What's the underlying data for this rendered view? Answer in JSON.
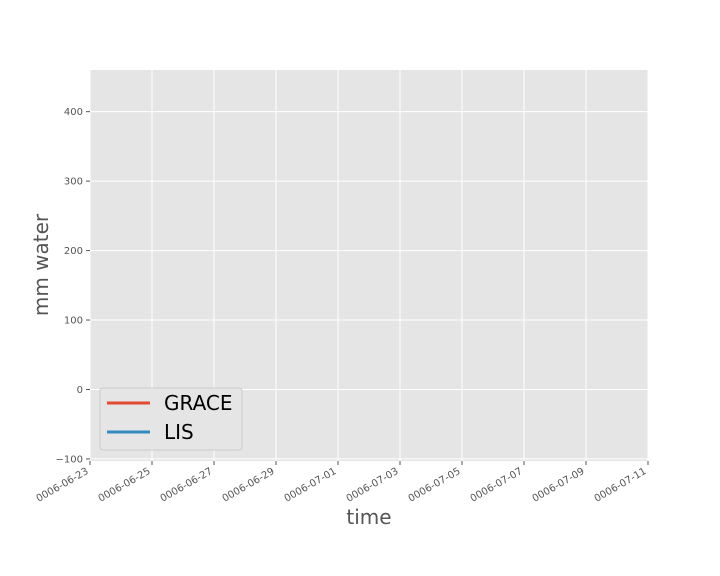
{
  "chart_data": {
    "type": "line",
    "xlabel": "time",
    "ylabel": "mm water",
    "xlim": [
      "0006-06-23",
      "0006-07-11"
    ],
    "ylim": [
      -103,
      460
    ],
    "x_ticks": [
      "0006-06-23",
      "0006-06-25",
      "0006-06-27",
      "0006-06-29",
      "0006-07-01",
      "0006-07-03",
      "0006-07-05",
      "0006-07-07",
      "0006-07-09",
      "0006-07-11"
    ],
    "y_ticks": [
      -100,
      0,
      100,
      200,
      300,
      400
    ],
    "grid": true,
    "legend_placement": "lower-left",
    "series": [
      {
        "name": "GRACE",
        "color": "#E24A33",
        "x": [],
        "y": []
      },
      {
        "name": "LIS",
        "color": "#348ABD",
        "x": [],
        "y": []
      }
    ],
    "plot_background": "#E5E5E5",
    "grid_color": "#FFFFFF"
  }
}
